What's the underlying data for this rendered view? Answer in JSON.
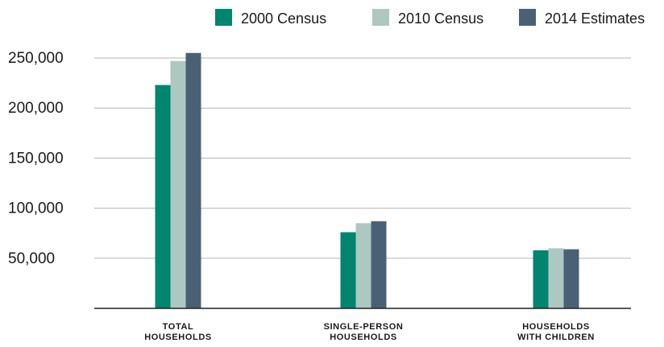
{
  "chart_data": {
    "type": "bar",
    "categories": [
      [
        "TOTAL",
        "HOUSEHOLDS"
      ],
      [
        "SINGLE-PERSON",
        "HOUSEHOLDS"
      ],
      [
        "HOUSEHOLDS",
        "WITH CHILDREN"
      ]
    ],
    "series": [
      {
        "name": "2000 Census",
        "color": "#00856f",
        "values": [
          223000,
          76000,
          58000
        ]
      },
      {
        "name": "2010 Census",
        "color": "#adc8c0",
        "values": [
          247000,
          85000,
          60000
        ]
      },
      {
        "name": "2014 Estimates",
        "color": "#4a6175",
        "values": [
          255000,
          87000,
          59000
        ]
      }
    ],
    "yticks": [
      50000,
      100000,
      150000,
      200000,
      250000
    ],
    "ytick_labels": [
      "50,000",
      "100,000",
      "150,000",
      "200,000",
      "250,000"
    ],
    "ylim": [
      0,
      250000
    ],
    "grid": true,
    "legend_position": "top-right",
    "title": "",
    "xlabel": "",
    "ylabel": ""
  }
}
